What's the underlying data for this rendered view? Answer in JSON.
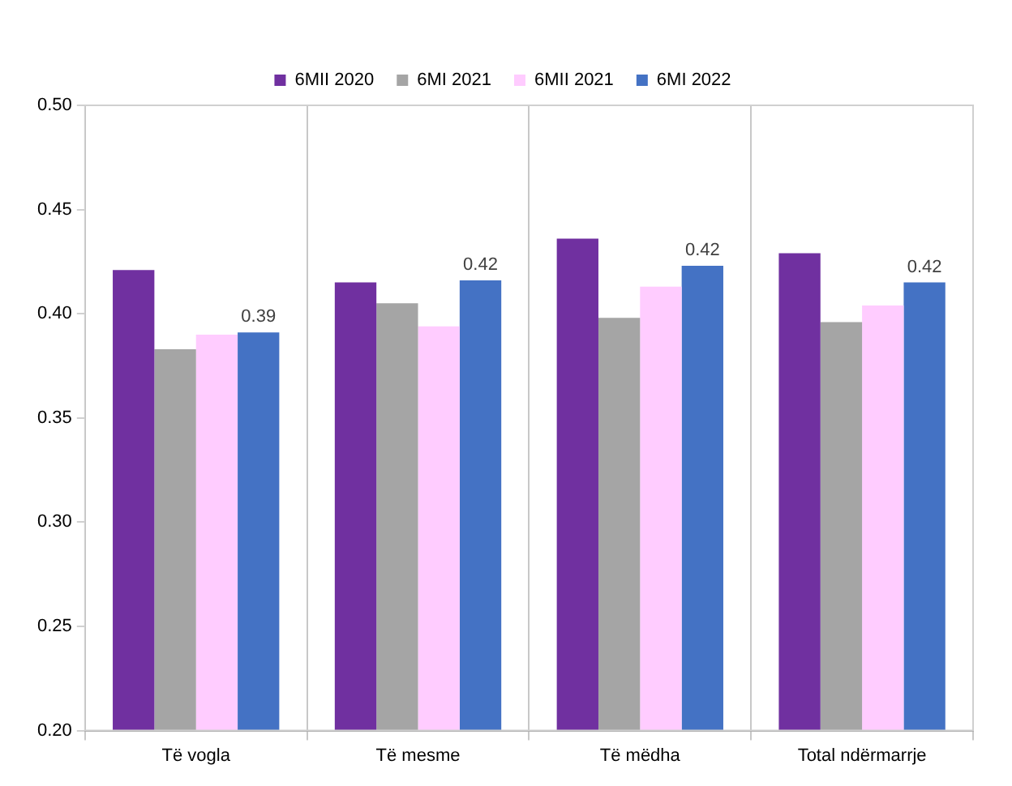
{
  "chart_data": {
    "type": "bar",
    "categories": [
      "Të vogla",
      "Të mesme",
      "Të mëdha",
      "Total ndërmarrje"
    ],
    "series": [
      {
        "name": "6MII 2020",
        "color": "#7030a0",
        "values": [
          0.421,
          0.415,
          0.436,
          0.429
        ]
      },
      {
        "name": "6MI 2021",
        "color": "#a5a5a5",
        "values": [
          0.383,
          0.405,
          0.398,
          0.396
        ]
      },
      {
        "name": "6MII 2021",
        "color": "#ffccff",
        "values": [
          0.39,
          0.394,
          0.413,
          0.404
        ]
      },
      {
        "name": "6MI 2022",
        "color": "#4472c4",
        "values": [
          0.391,
          0.416,
          0.423,
          0.415
        ],
        "value_labels": [
          "0.39",
          "0.42",
          "0.42",
          "0.42"
        ]
      }
    ],
    "ylim": [
      0.2,
      0.5
    ],
    "yticks": [
      {
        "value": 0.2,
        "label": "0.20"
      },
      {
        "value": 0.25,
        "label": "0.25"
      },
      {
        "value": 0.3,
        "label": "0.30"
      },
      {
        "value": 0.35,
        "label": "0.35"
      },
      {
        "value": 0.4,
        "label": "0.40"
      },
      {
        "value": 0.45,
        "label": "0.45"
      },
      {
        "value": 0.5,
        "label": "0.50"
      }
    ],
    "grid": "x",
    "legend": "top"
  }
}
